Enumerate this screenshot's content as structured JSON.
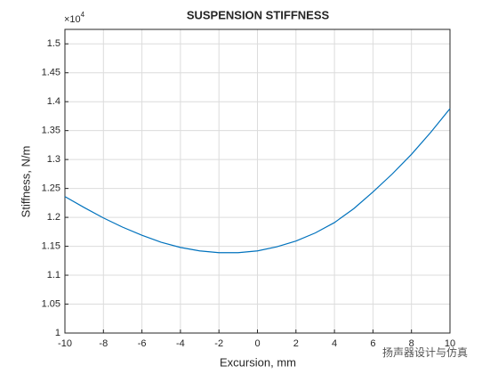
{
  "chart_data": {
    "type": "line",
    "title": "SUSPENSION STIFFNESS",
    "x_label": "Excursion, mm",
    "y_label": "Stiffness, N/m",
    "y_multiplier": {
      "base": "×10",
      "exponent": "4"
    },
    "x": [
      -10,
      -9,
      -8,
      -7,
      -6,
      -5,
      -4,
      -3,
      -2,
      -1,
      0,
      1,
      2,
      3,
      4,
      5,
      6,
      7,
      8,
      9,
      10
    ],
    "series": [
      {
        "name": "Stiffness",
        "color": "#0072bd",
        "values": [
          1.236,
          1.217,
          1.199,
          1.183,
          1.169,
          1.157,
          1.148,
          1.142,
          1.139,
          1.139,
          1.142,
          1.149,
          1.159,
          1.173,
          1.191,
          1.215,
          1.244,
          1.275,
          1.309,
          1.347,
          1.388
        ]
      }
    ],
    "xlim": [
      -10,
      10
    ],
    "xticks": [
      -10,
      -8,
      -6,
      -4,
      -2,
      0,
      2,
      4,
      6,
      8,
      10
    ],
    "ylim": [
      1,
      1.525
    ],
    "yticks": [
      1,
      1.05,
      1.1,
      1.15,
      1.2,
      1.25,
      1.3,
      1.35,
      1.4,
      1.45,
      1.5
    ],
    "grid": true,
    "watermark": "扬声器设计与仿真"
  }
}
